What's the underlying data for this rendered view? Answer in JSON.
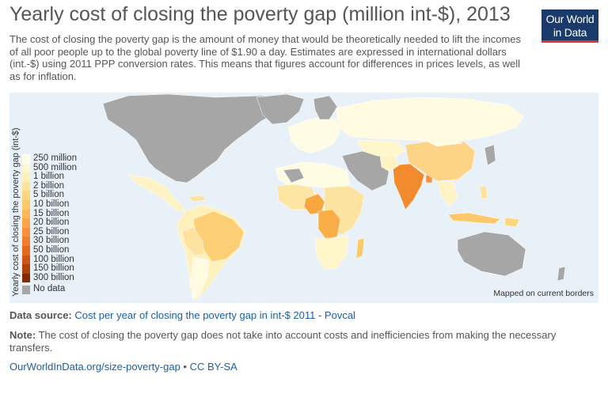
{
  "header": {
    "title": "Yearly cost of closing the poverty gap (million int-$), 2013",
    "subtitle": "The cost of closing the poverty gap is the amount of money that would be theoretically needed to lift the incomes of all poor people up to the global poverty line of $1.90 a day. Estimates are expressed in international dollars (int.-$) using 2011 PPP conversion rates. This means that figures account for differences in prices levels, as well as for inflation."
  },
  "logo": {
    "line1": "Our World",
    "line2": "in Data"
  },
  "map": {
    "legend_title": "Yearly cost of closing the poverty gap (int-$)",
    "legend": [
      {
        "label": "250 million",
        "color": "#fffde8"
      },
      {
        "label": "500 million",
        "color": "#fff7d2"
      },
      {
        "label": "1 billion",
        "color": "#ffefb8"
      },
      {
        "label": "2 billion",
        "color": "#ffe49c"
      },
      {
        "label": "5 billion",
        "color": "#fdd780"
      },
      {
        "label": "10 billion",
        "color": "#fdc86a"
      },
      {
        "label": "15 billion",
        "color": "#fdb859"
      },
      {
        "label": "20 billion",
        "color": "#fca44a"
      },
      {
        "label": "25 billion",
        "color": "#f8913c"
      },
      {
        "label": "30 billion",
        "color": "#f17d2e"
      },
      {
        "label": "50 billion",
        "color": "#e36a20"
      },
      {
        "label": "100 billion",
        "color": "#cd5614"
      },
      {
        "label": "150 billion",
        "color": "#ad420c"
      },
      {
        "label": "300 billion",
        "color": "#7f2d07"
      }
    ],
    "no_data": {
      "label": "No data",
      "color": "#a6a6a6"
    },
    "mapped_note": "Mapped on current borders",
    "colors": {
      "ocean": "#e8f0f8",
      "nodata": "#a6a6a6",
      "india": "#f28a2e",
      "nigeria": "#f8a63e",
      "drc": "#f9ae48"
    }
  },
  "source": {
    "label": "Data source:",
    "text": "Cost per year of closing the poverty gap in int-$ 2011 - Povcal"
  },
  "note": {
    "label": "Note:",
    "text": "The cost of closing the poverty gap does not take into account costs and inefficiencies from making the necessary transfers."
  },
  "footer": {
    "link": "OurWorldInData.org/size-poverty-gap",
    "separator": " • ",
    "license": "CC BY-SA"
  }
}
